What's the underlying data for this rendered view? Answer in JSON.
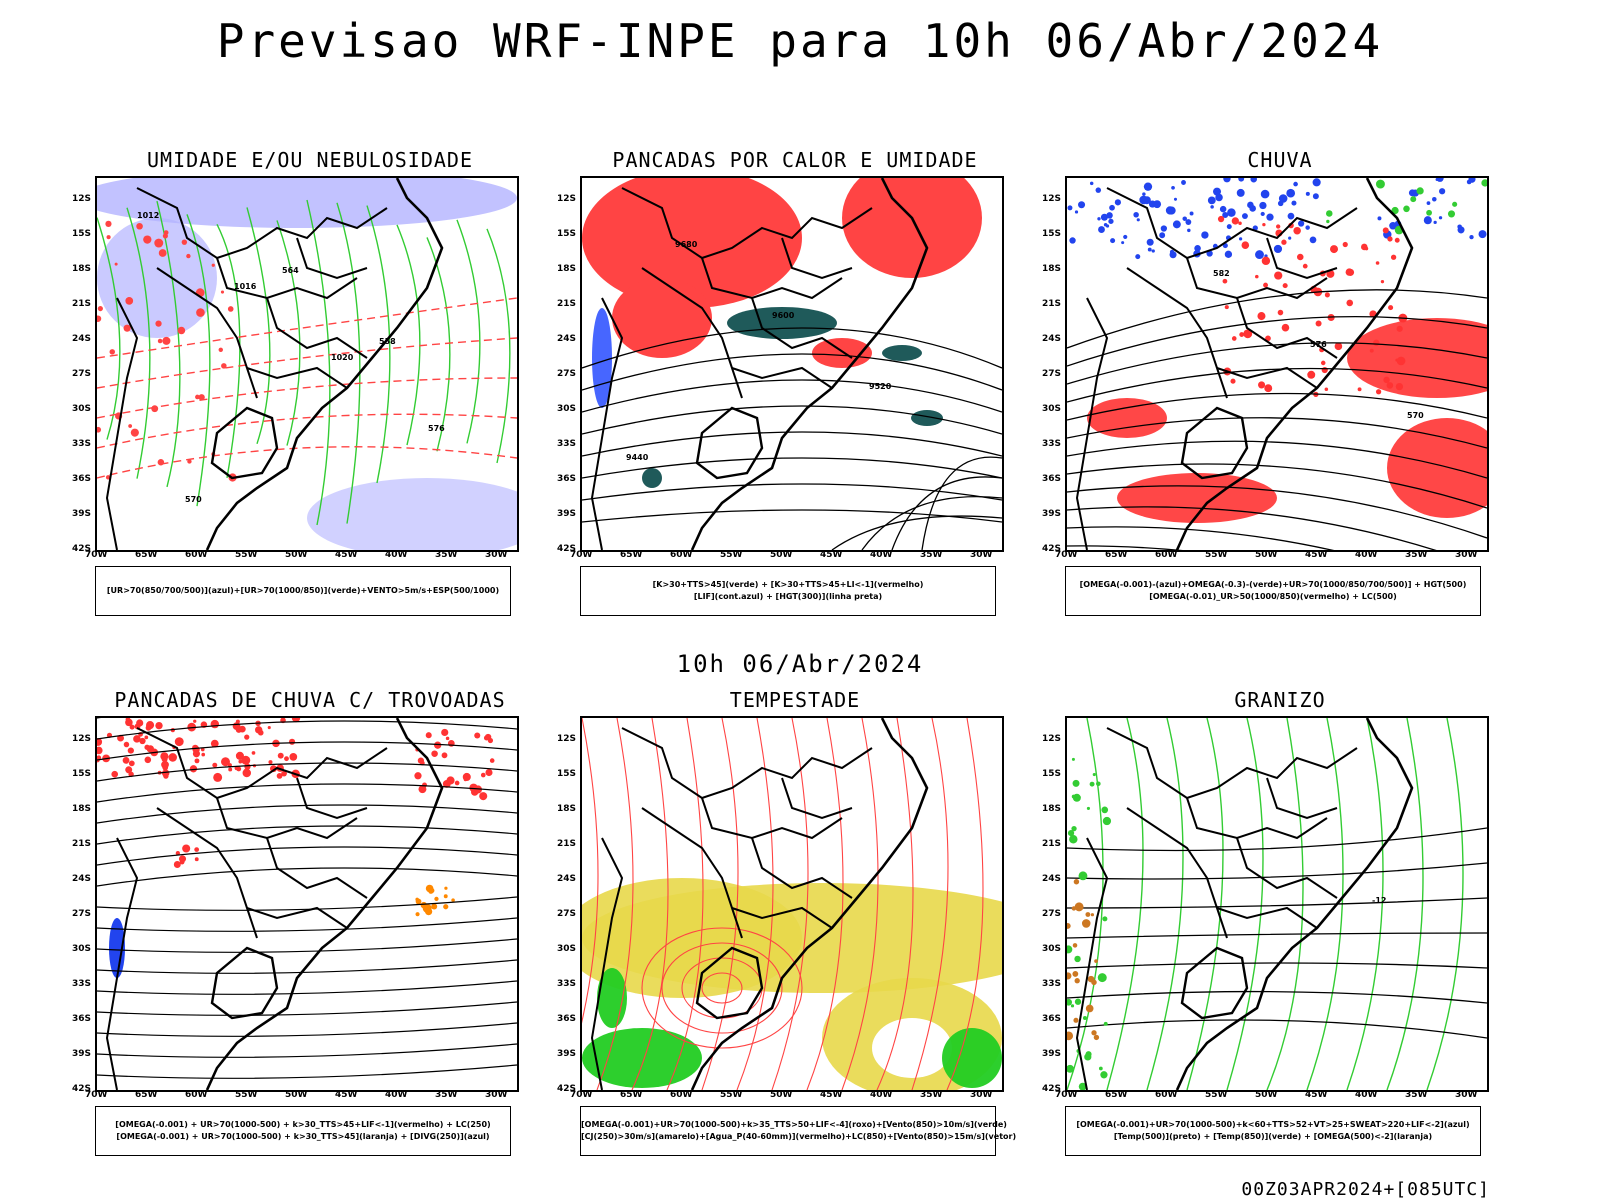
{
  "title": "Previsao WRF-INPE  para 10h 06/Abr/2024",
  "middle_title": "10h 06/Abr/2024",
  "footer": "00Z03APR2024+[085UTC]",
  "lat_ticks": [
    "12S",
    "15S",
    "18S",
    "21S",
    "24S",
    "27S",
    "30S",
    "33S",
    "36S",
    "39S",
    "42S"
  ],
  "lon_ticks": [
    "70W",
    "65W",
    "60W",
    "55W",
    "50W",
    "45W",
    "40W",
    "35W",
    "30W"
  ],
  "panels": [
    {
      "title": "UMIDADE E/OU NEBULOSIDADE",
      "legend": [
        "[UR>70(850/700/500)](azul)+[UR>70(1000/850)](verde)+VENTO>5m/s+ESP(500/1000)"
      ],
      "colors": [
        "#b3b3ff",
        "#33cc33",
        "#ff4444",
        "#000000"
      ],
      "labels": [
        "1012",
        "1016",
        "1020",
        "576",
        "570",
        "564",
        "558"
      ]
    },
    {
      "title": "PANCADAS POR CALOR E UMIDADE",
      "legend": [
        "[K>30+TTS>45](verde) + [K>30+TTS>45+LI<-1](vermelho)",
        "[LIF](cont.azul) + [HGT(300)](linha preta)"
      ],
      "colors": [
        "#ff4444",
        "#1f5a5a",
        "#3355ff",
        "#000000"
      ],
      "labels": [
        "9680",
        "9600",
        "9520",
        "9440"
      ]
    },
    {
      "title": "CHUVA",
      "legend": [
        "[OMEGA(-0.001)-(azul)+OMEGA(-0.3)-(verde)+UR>70(1000/850/700/500)] + HGT(500)",
        "[OMEGA(-0.01)_UR>50(1000/850)(vermelho) + LC(500)"
      ],
      "colors": [
        "#2244ee",
        "#33cc33",
        "#ff3333",
        "#000000"
      ],
      "labels": [
        "582",
        "576",
        "570"
      ]
    },
    {
      "title": "PANCADAS DE CHUVA C/ TROVOADAS",
      "legend": [
        "[OMEGA(-0.001) + UR>70(1000-500) + k>30_TTS>45+LIF<-1](vermelho) + LC(250)",
        "[OMEGA(-0.001) + UR>70(1000-500) + k>30_TTS>45](laranja) + [DIVG(250)](azul)"
      ],
      "colors": [
        "#ff3333",
        "#ff8800",
        "#2244ee",
        "#000000"
      ],
      "labels": []
    },
    {
      "title": "TEMPESTADE",
      "legend": [
        "[OMEGA(-0.001)+UR>70(1000-500)+k>35_TTS>50+LIF<-4](roxo)+[Vento(850)>10m/s](verde)",
        "[CJ(250)>30m/s](amarelo)+[Agua_P(40-60mm)](vermelho)+LC(850)+[Vento(850)>15m/s](vetor)"
      ],
      "colors": [
        "#e8d84a",
        "#22cc22",
        "#ff4444",
        "#000000"
      ],
      "labels": []
    },
    {
      "title": "GRANIZO",
      "legend": [
        "[OMEGA(-0.001)+UR>70(1000-500)+k<60+TTS>52+VT>25+SWEAT>220+LIF<-2](azul)",
        "[Temp(500)](preto) + [Temp(850)](verde) + [OMEGA(500)<-2](laranja)"
      ],
      "colors": [
        "#33cc33",
        "#cc7722",
        "#2244ee",
        "#000000"
      ],
      "labels": [
        "-12"
      ]
    }
  ]
}
